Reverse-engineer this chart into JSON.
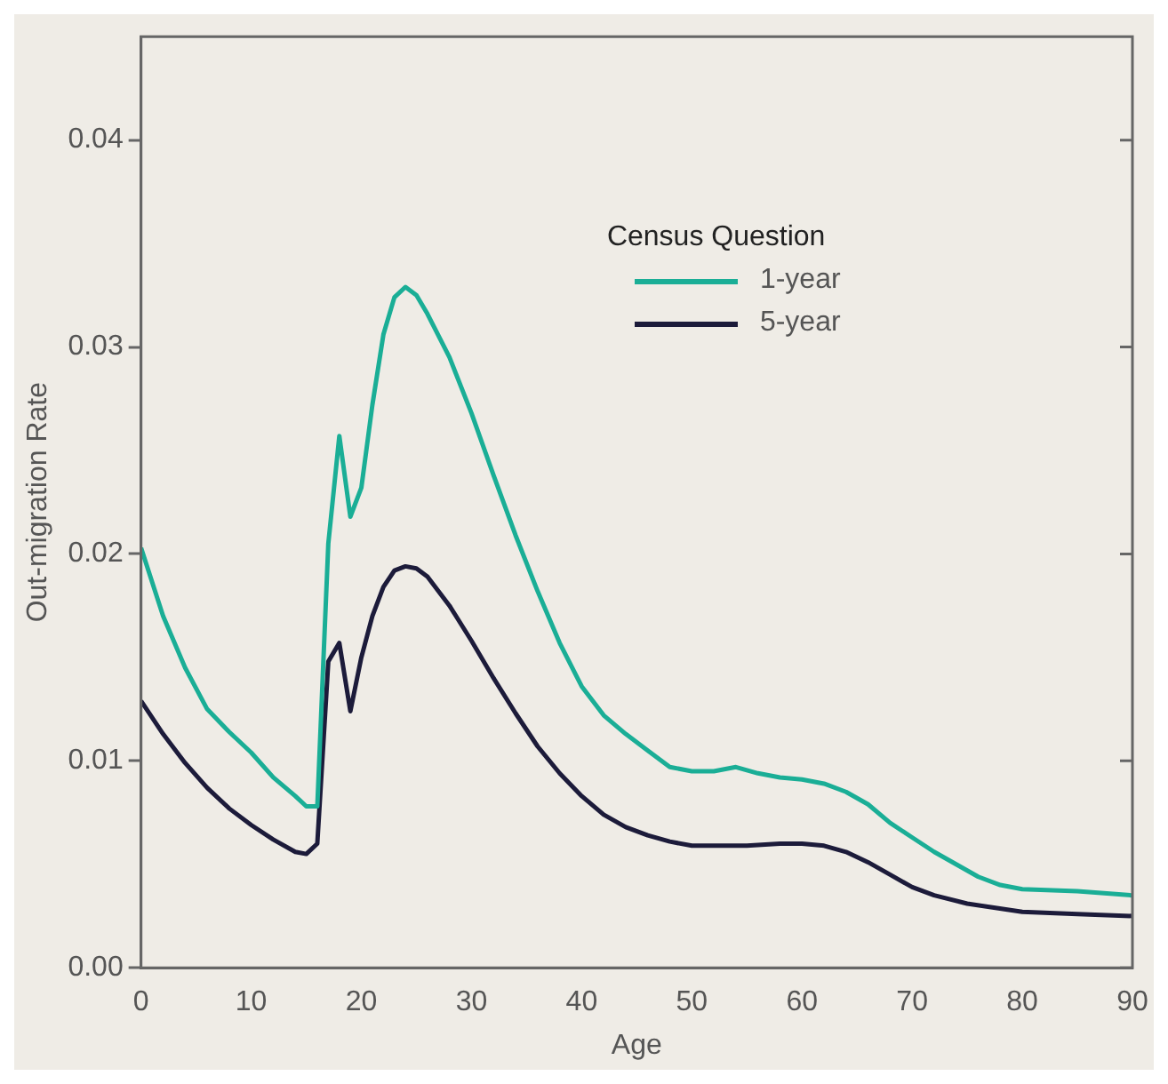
{
  "chart_data": {
    "type": "line",
    "xlabel": "Age",
    "ylabel": "Out-migration Rate",
    "legend_title": "Census Question",
    "legend": "top right",
    "grid": false,
    "marker": "none",
    "line_style": "solid",
    "xlim": [
      0,
      90
    ],
    "xticks": [
      0,
      10,
      20,
      30,
      40,
      50,
      60,
      70,
      80,
      90
    ],
    "ylim": [
      0,
      0.045
    ],
    "yticks": [
      {
        "value": 0,
        "label": "0.00"
      },
      {
        "value": 0.01,
        "label": "0.01"
      },
      {
        "value": 0.02,
        "label": "0.02"
      },
      {
        "value": 0.03,
        "label": "0.03"
      },
      {
        "value": 0.04,
        "label": "0.04"
      }
    ],
    "series": [
      {
        "name": "1-year",
        "color": "#1aae96",
        "x": [
          0,
          2,
          4,
          6,
          8,
          10,
          12,
          14,
          15,
          16,
          17,
          18,
          19,
          20,
          21,
          22,
          23,
          24,
          25,
          26,
          28,
          30,
          32,
          34,
          36,
          38,
          40,
          42,
          44,
          46,
          48,
          50,
          52,
          54,
          56,
          58,
          60,
          62,
          64,
          66,
          68,
          70,
          72,
          74,
          76,
          78,
          80,
          85,
          90
        ],
        "values": [
          0.0203,
          0.017,
          0.0145,
          0.0125,
          0.0114,
          0.0104,
          0.0092,
          0.0083,
          0.0078,
          0.0078,
          0.0205,
          0.0257,
          0.0218,
          0.0232,
          0.0272,
          0.0306,
          0.0324,
          0.0329,
          0.0325,
          0.0316,
          0.0295,
          0.0268,
          0.0238,
          0.0209,
          0.0182,
          0.0157,
          0.0136,
          0.0122,
          0.0113,
          0.0105,
          0.0097,
          0.0095,
          0.0095,
          0.0097,
          0.0094,
          0.0092,
          0.0091,
          0.0089,
          0.0085,
          0.0079,
          0.007,
          0.0063,
          0.0056,
          0.005,
          0.0044,
          0.004,
          0.0038,
          0.0037,
          0.0035
        ]
      },
      {
        "name": "5-year",
        "color": "#1c1b3a",
        "x": [
          0,
          2,
          4,
          6,
          8,
          10,
          12,
          14,
          15,
          16,
          17,
          18,
          19,
          20,
          21,
          22,
          23,
          24,
          25,
          26,
          28,
          30,
          32,
          34,
          36,
          38,
          40,
          42,
          44,
          46,
          48,
          50,
          55,
          58,
          60,
          62,
          64,
          66,
          68,
          70,
          72,
          75,
          80,
          85,
          90
        ],
        "values": [
          0.0129,
          0.0113,
          0.0099,
          0.0087,
          0.0077,
          0.0069,
          0.0062,
          0.0056,
          0.0055,
          0.006,
          0.0148,
          0.0157,
          0.0124,
          0.015,
          0.017,
          0.0184,
          0.0192,
          0.0194,
          0.0193,
          0.0189,
          0.0175,
          0.0158,
          0.014,
          0.0123,
          0.0107,
          0.0094,
          0.0083,
          0.0074,
          0.0068,
          0.0064,
          0.0061,
          0.0059,
          0.0059,
          0.006,
          0.006,
          0.0059,
          0.0056,
          0.0051,
          0.0045,
          0.0039,
          0.0035,
          0.0031,
          0.0027,
          0.0026,
          0.0025
        ]
      }
    ]
  }
}
